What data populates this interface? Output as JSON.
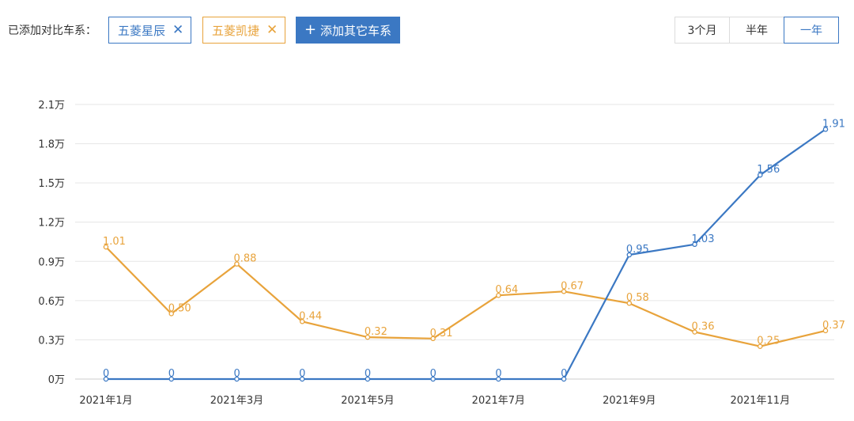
{
  "filter": {
    "compare_label": "已添加对比车系：",
    "selected_series": [
      {
        "name": "五菱星辰",
        "remove_icon": "close-icon",
        "color": "#3b78c3"
      },
      {
        "name": "五菱凯捷",
        "remove_icon": "close-icon",
        "color": "#e8a33b"
      }
    ],
    "add_button": {
      "icon": "plus-icon",
      "label": "添加其它车系",
      "color": "#3b78c3"
    }
  },
  "time_range": {
    "options": [
      "3个月",
      "半年",
      "一年"
    ],
    "selected": "一年"
  },
  "chart_data": {
    "type": "line",
    "x": [
      "2021年1月",
      "2021年2月",
      "2021年3月",
      "2021年4月",
      "2021年5月",
      "2021年6月",
      "2021年7月",
      "2021年8月",
      "2021年9月",
      "2021年10月",
      "2021年11月",
      "2021年12月"
    ],
    "x_tick_labels": [
      "2021年1月",
      "",
      "2021年3月",
      "",
      "2021年5月",
      "",
      "2021年7月",
      "",
      "2021年9月",
      "",
      "2021年11月",
      ""
    ],
    "y_ticks": [
      "0万",
      "0.3万",
      "0.6万",
      "0.9万",
      "1.2万",
      "1.5万",
      "1.8万",
      "2.1万"
    ],
    "ylim": [
      0,
      2.1
    ],
    "y_unit": "万",
    "grid": true,
    "series": [
      {
        "name": "五菱星辰",
        "color": "#3b78c3",
        "values": [
          0,
          0,
          0,
          0,
          0,
          0,
          0,
          0,
          0.95,
          1.03,
          1.56,
          1.91
        ],
        "labels": [
          "0",
          "0",
          "0",
          "0",
          "0",
          "0",
          "0",
          "0",
          "0.95",
          "1.03",
          "1.56",
          "1.91"
        ]
      },
      {
        "name": "五菱凯捷",
        "color": "#e8a33b",
        "values": [
          1.01,
          0.5,
          0.88,
          0.44,
          0.32,
          0.31,
          0.64,
          0.67,
          0.58,
          0.36,
          0.25,
          0.37
        ],
        "labels": [
          "1.01",
          "0.50",
          "0.88",
          "0.44",
          "0.32",
          "0.31",
          "0.64",
          "0.67",
          "0.58",
          "0.36",
          "0.25",
          "0.37"
        ]
      }
    ]
  }
}
